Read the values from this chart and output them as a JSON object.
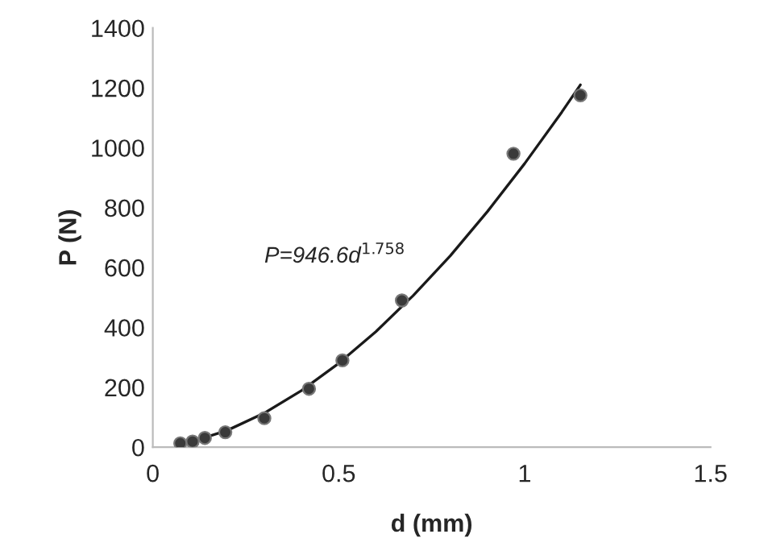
{
  "chart_data": {
    "type": "scatter",
    "xlabel": "d (mm)",
    "ylabel": "P (N)",
    "xlim": [
      0,
      1.5
    ],
    "xticks": [
      0,
      0.5,
      1,
      1.5
    ],
    "ylim": [
      0,
      1400
    ],
    "yticks": [
      0,
      200,
      400,
      600,
      800,
      1000,
      1200,
      1400
    ],
    "grid": false,
    "legend": false,
    "marker": "circle",
    "annotations": [
      "P=946.6d$^{1.758}$"
    ],
    "series": [
      {
        "color": "#3a3a3a",
        "x": [
          0.074,
          0.107,
          0.14,
          0.195,
          0.3,
          0.42,
          0.51,
          0.67,
          0.97,
          1.15
        ],
        "values": [
          13,
          19,
          31,
          50,
          97,
          195,
          290,
          490,
          980,
          1175
        ]
      },
      {
        "type": "line",
        "color": "#1a1a1a",
        "marker": "none",
        "line_style": "solid",
        "x": [
          0.07,
          0.1,
          0.2,
          0.3,
          0.4,
          0.5,
          0.6,
          0.7,
          0.8,
          0.9,
          1.0,
          1.1,
          1.15
        ],
        "values": [
          9,
          17,
          56,
          114,
          189,
          280,
          386,
          506,
          639,
          787,
          947,
          1119,
          1210
        ]
      }
    ]
  }
}
